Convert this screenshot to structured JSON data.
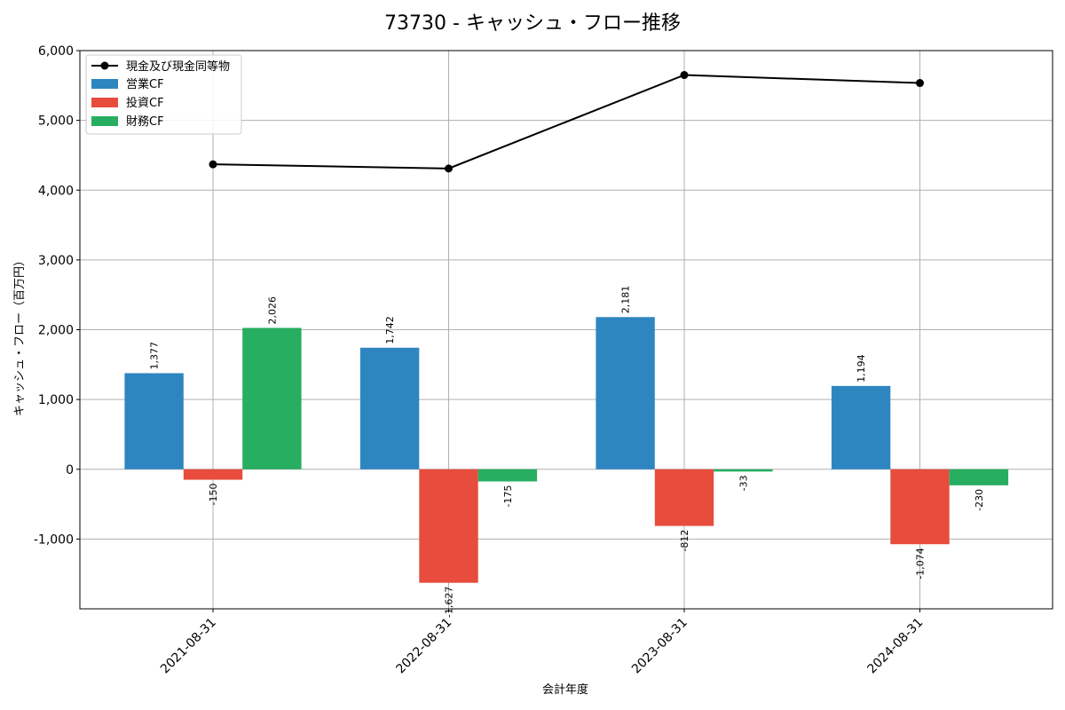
{
  "chart_data": {
    "type": "bar",
    "title": "73730 - キャッシュ・フロー推移",
    "xlabel": "会計年度",
    "ylabel": "キャッシュ・フロー（百万円）",
    "ylim": [
      -2000,
      6000
    ],
    "yticks": [
      -1000,
      0,
      1000,
      2000,
      3000,
      4000,
      5000,
      6000
    ],
    "ytick_labels": [
      "-1,000",
      "0",
      "1,000",
      "2,000",
      "3,000",
      "4,000",
      "5,000",
      "6,000"
    ],
    "categories": [
      "2021-08-31",
      "2022-08-31",
      "2023-08-31",
      "2024-08-31"
    ],
    "grid": true,
    "legend_position": "top-left",
    "series": [
      {
        "name": "営業CF",
        "kind": "bar",
        "color": "#2e86c1",
        "values": [
          1377,
          1742,
          2181,
          1194
        ],
        "labels": [
          "1,377",
          "1,742",
          "2,181",
          "1,194"
        ]
      },
      {
        "name": "投資CF",
        "kind": "bar",
        "color": "#e74c3c",
        "values": [
          -150,
          -1627,
          -812,
          -1074
        ],
        "labels": [
          "-150",
          "-1,627",
          "-812",
          "-1,074"
        ]
      },
      {
        "name": "財務CF",
        "kind": "bar",
        "color": "#27ae60",
        "values": [
          2026,
          -175,
          -33,
          -230
        ],
        "labels": [
          "2,026",
          "-175",
          "-33",
          "-230"
        ]
      }
    ],
    "line": {
      "name": "現金及び現金同等物",
      "kind": "line",
      "color": "#000000",
      "values": [
        4370,
        4310,
        5650,
        5535
      ]
    }
  }
}
